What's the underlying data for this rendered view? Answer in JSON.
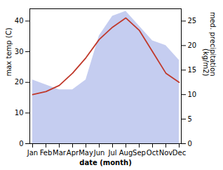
{
  "chart_data": {
    "type": "line",
    "xlabel": "date (month)",
    "ylabel": "max temp (C)",
    "y2label": "med. precipitation\n(kg/m2)",
    "categories": [
      "Jan",
      "Feb",
      "Mar",
      "Apr",
      "May",
      "Jun",
      "Jul",
      "Aug",
      "Sep",
      "Oct",
      "Nov",
      "Dec"
    ],
    "series": [
      {
        "type": "area",
        "axis": "y2",
        "color": "#c5cdf0",
        "values": [
          13,
          12,
          11,
          11,
          13,
          22,
          26,
          27,
          24,
          21,
          20,
          17
        ]
      },
      {
        "type": "line",
        "color": "#c0392b",
        "values": [
          16,
          17,
          19,
          23,
          28,
          34,
          38,
          41,
          37,
          30,
          23,
          20
        ]
      }
    ],
    "ylim": [
      0,
      44
    ],
    "yticks": [
      0,
      10,
      20,
      30,
      40
    ],
    "y2lim": [
      0,
      27.5
    ],
    "y2ticks": [
      0,
      5,
      10,
      15,
      20,
      25
    ],
    "grid": false
  }
}
